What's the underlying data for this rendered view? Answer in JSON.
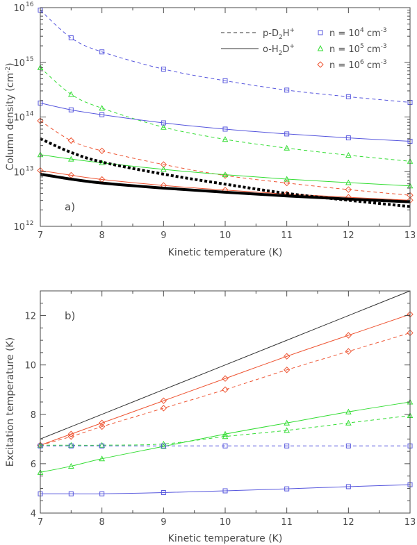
{
  "chart_data": [
    {
      "type": "line",
      "panel_label": "a)",
      "xlabel": "Kinetic temperature (K)",
      "ylabel": "Column density (cm",
      "ylabel_sup": "-2",
      "ylabel_end": ")",
      "yscale": "log",
      "xlim": [
        7,
        13
      ],
      "ylim": [
        1000000000000.0,
        1e+16
      ],
      "xticks": [
        7,
        8,
        9,
        10,
        11,
        12,
        13
      ],
      "xtick_labels": [
        "7",
        "8",
        "9",
        "10",
        "11",
        "12",
        "13"
      ],
      "yticks": [
        1000000000000.0,
        10000000000000.0,
        100000000000000.0,
        1000000000000000.0,
        1e+16
      ],
      "ytick_bases": [
        "10",
        "10",
        "10",
        "10",
        "10"
      ],
      "ytick_exps": [
        "12",
        "13",
        "14",
        "15",
        "16"
      ],
      "legend": {
        "placement": "top-right",
        "styles": [
          {
            "name": "p-D",
            "sub": "2",
            "name2": "H",
            "sup": "+",
            "dash": "dashed"
          },
          {
            "name": "o-H",
            "sub": "2",
            "name2": "D",
            "sup": "+",
            "dash": "solid"
          }
        ],
        "densities": [
          {
            "text": "n = 10",
            "exp": "4",
            "unit": " cm",
            "unit_exp": "-3",
            "color": "#5555dd",
            "marker": "square"
          },
          {
            "text": "n = 10",
            "exp": "5",
            "unit": " cm",
            "unit_exp": "-3",
            "color": "#33dd33",
            "marker": "triangle"
          },
          {
            "text": "n = 10",
            "exp": "6",
            "unit": " cm",
            "unit_exp": "-3",
            "color": "#ee5533",
            "marker": "diamond"
          }
        ]
      },
      "x": [
        7,
        7.5,
        8,
        9,
        10,
        11,
        12,
        13
      ],
      "series": [
        {
          "name": "p-D2H+ n=1e4",
          "color": "#5555dd",
          "dash": "dashed",
          "marker": "square",
          "values": [
            9000000000000000.0,
            2800000000000000.0,
            1550000000000000.0,
            750000000000000.0,
            460000000000000.0,
            310000000000000.0,
            235000000000000.0,
            185000000000000.0
          ]
        },
        {
          "name": "p-D2H+ n=1e5",
          "color": "#33dd33",
          "dash": "dashed",
          "marker": "triangle",
          "values": [
            800000000000000.0,
            260000000000000.0,
            145000000000000.0,
            65000000000000.0,
            39000000000000.0,
            27000000000000.0,
            20000000000000.0,
            15500000000000.0
          ]
        },
        {
          "name": "p-D2H+ n=1e6",
          "color": "#ee5533",
          "dash": "dashed",
          "marker": "diamond",
          "values": [
            85000000000000.0,
            37000000000000.0,
            24000000000000.0,
            13500000000000.0,
            8500000000000.0,
            6200000000000.0,
            4700000000000.0,
            3700000000000.0
          ]
        },
        {
          "name": "o-H2D+ n=1e4",
          "color": "#5555dd",
          "dash": "solid",
          "marker": "square",
          "values": [
            180000000000000.0,
            135000000000000.0,
            110000000000000.0,
            78000000000000.0,
            60000000000000.0,
            49000000000000.0,
            41500000000000.0,
            36000000000000.0
          ]
        },
        {
          "name": "o-H2D+ n=1e5",
          "color": "#33dd33",
          "dash": "solid",
          "marker": "triangle",
          "values": [
            20500000000000.0,
            17000000000000.0,
            14500000000000.0,
            11000000000000.0,
            8800000000000.0,
            7300000000000.0,
            6300000000000.0,
            5500000000000.0
          ]
        },
        {
          "name": "o-H2D+ n=1e6",
          "color": "#ee5533",
          "dash": "solid",
          "marker": "diamond",
          "values": [
            10500000000000.0,
            8600000000000.0,
            7200000000000.0,
            5600000000000.0,
            4600000000000.0,
            3900000000000.0,
            3400000000000.0,
            3000000000000.0
          ]
        },
        {
          "name": "p-D2H+ observed",
          "color": "#000000",
          "dash": "thick-dotted",
          "marker": "none",
          "values": [
            40000000000000.0,
            22500000000000.0,
            15000000000000.0,
            9000000000000.0,
            5900000000000.0,
            4000000000000.0,
            3000000000000.0,
            2300000000000.0
          ]
        },
        {
          "name": "o-H2D+ observed",
          "color": "#000000",
          "dash": "thick-solid",
          "marker": "none",
          "values": [
            9000000000000.0,
            7300000000000.0,
            6200000000000.0,
            5000000000000.0,
            4200000000000.0,
            3600000000000.0,
            3150000000000.0,
            2800000000000.0
          ]
        }
      ]
    },
    {
      "type": "line",
      "panel_label": "b)",
      "xlabel": "Kinetic temperature (K)",
      "ylabel": "Excitation temperature (K)",
      "yscale": "linear",
      "xlim": [
        7,
        13
      ],
      "ylim": [
        4,
        13
      ],
      "xticks": [
        7,
        8,
        9,
        10,
        11,
        12,
        13
      ],
      "xtick_labels": [
        "7",
        "8",
        "9",
        "10",
        "11",
        "12",
        "13"
      ],
      "yticks": [
        4,
        6,
        8,
        10,
        12
      ],
      "ytick_labels": [
        "4",
        "6",
        "8",
        "10",
        "12"
      ],
      "x": [
        7,
        7.5,
        8,
        9,
        10,
        11,
        12,
        13
      ],
      "series": [
        {
          "name": "Tex = Tkin",
          "color": "#333333",
          "dash": "solid",
          "marker": "none",
          "values": [
            7,
            7.5,
            8,
            9,
            10,
            11,
            12,
            13
          ]
        },
        {
          "name": "o-H2D+ n=1e6",
          "color": "#ee5533",
          "dash": "solid",
          "marker": "diamond",
          "values": [
            6.75,
            7.2,
            7.65,
            8.55,
            9.45,
            10.35,
            11.2,
            12.05
          ]
        },
        {
          "name": "p-D2H+ n=1e6",
          "color": "#ee5533",
          "dash": "dashed",
          "marker": "diamond",
          "values": [
            6.75,
            7.1,
            7.5,
            8.25,
            9.0,
            9.8,
            10.55,
            11.3
          ]
        },
        {
          "name": "o-H2D+ n=1e5",
          "color": "#33dd33",
          "dash": "solid",
          "marker": "triangle",
          "values": [
            5.65,
            5.9,
            6.2,
            6.7,
            7.2,
            7.65,
            8.1,
            8.5
          ]
        },
        {
          "name": "p-D2H+ n=1e5",
          "color": "#33dd33",
          "dash": "dashed",
          "marker": "triangle",
          "values": [
            6.75,
            6.75,
            6.75,
            6.8,
            7.1,
            7.35,
            7.65,
            7.95
          ]
        },
        {
          "name": "p-D2H+ n=1e4",
          "color": "#5555dd",
          "dash": "dashed",
          "marker": "square",
          "values": [
            6.72,
            6.72,
            6.72,
            6.72,
            6.72,
            6.72,
            6.72,
            6.72
          ]
        },
        {
          "name": "o-H2D+ n=1e4",
          "color": "#5555dd",
          "dash": "solid",
          "marker": "square",
          "values": [
            4.78,
            4.78,
            4.78,
            4.83,
            4.9,
            4.98,
            5.07,
            5.15
          ]
        }
      ]
    }
  ]
}
